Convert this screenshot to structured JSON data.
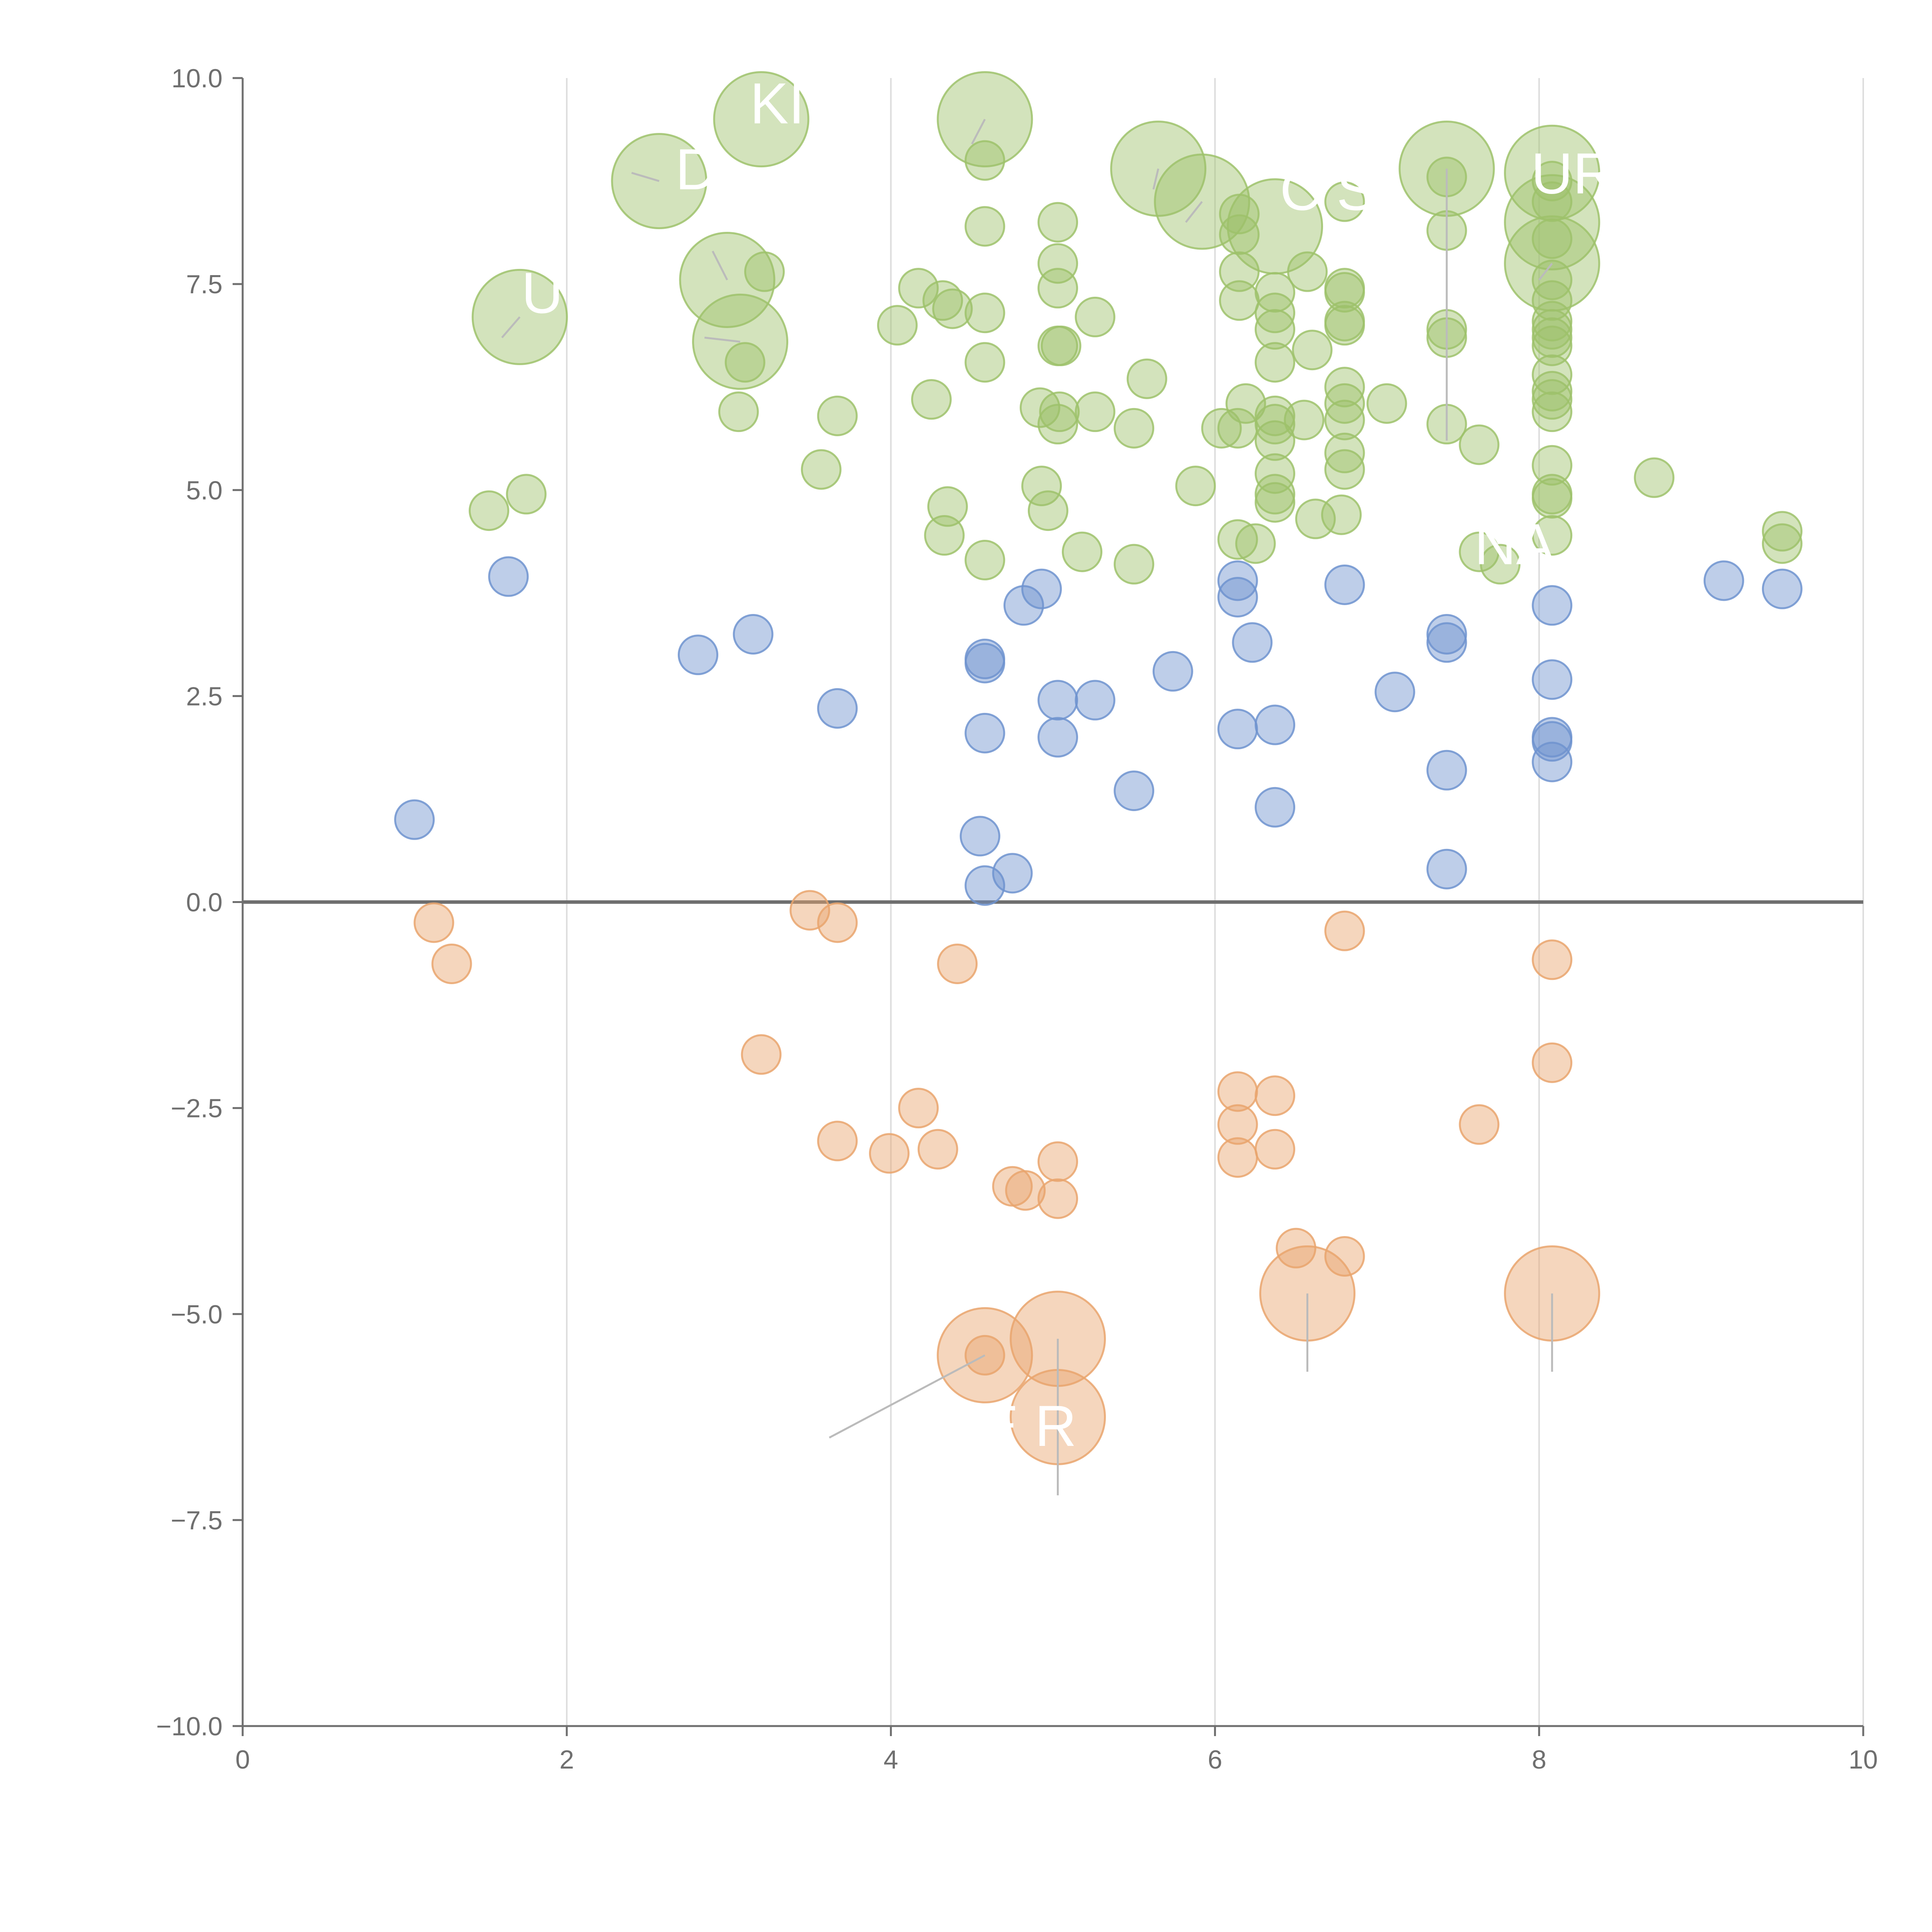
{
  "chart_data": {
    "type": "scatter",
    "title": "",
    "xlabel": "",
    "ylabel": "",
    "xlim": [
      0,
      10
    ],
    "ylim": [
      -10,
      10
    ],
    "x_ticks": [
      "0",
      "2",
      "4",
      "6",
      "8",
      "10"
    ],
    "y_ticks": [
      "10.0",
      "7.5",
      "5.0",
      "2.5",
      "0.0",
      "−2.5",
      "−5.0",
      "−7.5",
      "−10.0"
    ],
    "x_tick_values": [
      0,
      2,
      4,
      6,
      8,
      10
    ],
    "y_tick_values": [
      10,
      7.5,
      5,
      2.5,
      0,
      -2.5,
      -5,
      -7.5,
      -10
    ],
    "vertical_grid": true,
    "zero_line": true,
    "legend": false,
    "colors": {
      "high": "#9dc26b",
      "mid": "#6f93cf",
      "negative": "#e9a46d",
      "axis": "#6f6f6f",
      "grid": "#dddddd",
      "zero_line": "#6f6f6f",
      "leader_line": "#bbbbbb"
    },
    "series": [
      {
        "group": "high",
        "points": [
          [
            3.2,
            9.5,
            3
          ],
          [
            4.58,
            9.5,
            3
          ],
          [
            2.57,
            8.75,
            3
          ],
          [
            5.65,
            8.9,
            3
          ],
          [
            5.92,
            8.5,
            3
          ],
          [
            6.37,
            8.2,
            3
          ],
          [
            7.43,
            8.9,
            3
          ],
          [
            8.08,
            8.85,
            3
          ],
          [
            8.08,
            8.25,
            3
          ],
          [
            8.08,
            7.75,
            3
          ],
          [
            2.99,
            7.55,
            3
          ],
          [
            3.07,
            6.8,
            3
          ],
          [
            1.71,
            7.1,
            3
          ],
          [
            4.58,
            9.0,
            1
          ],
          [
            4.58,
            8.2,
            1
          ],
          [
            5.03,
            8.25,
            1
          ],
          [
            5.03,
            7.75,
            1
          ],
          [
            5.03,
            7.45,
            1
          ],
          [
            4.17,
            7.45,
            1
          ],
          [
            4.32,
            7.3,
            1
          ],
          [
            4.38,
            7.2,
            1
          ],
          [
            4.58,
            7.15,
            1
          ],
          [
            4.04,
            7.0,
            1
          ],
          [
            5.26,
            7.1,
            1
          ],
          [
            5.03,
            6.75,
            1
          ],
          [
            5.05,
            6.75,
            1
          ],
          [
            4.58,
            6.55,
            1
          ],
          [
            3.22,
            7.65,
            1
          ],
          [
            3.1,
            6.55,
            1
          ],
          [
            4.25,
            6.1,
            1
          ],
          [
            4.92,
            6.0,
            1
          ],
          [
            5.04,
            5.95,
            1
          ],
          [
            5.03,
            5.8,
            1
          ],
          [
            5.26,
            5.95,
            1
          ],
          [
            5.5,
            5.75,
            1
          ],
          [
            5.58,
            6.35,
            1
          ],
          [
            3.67,
            5.9,
            1
          ],
          [
            3.06,
            5.95,
            1
          ],
          [
            3.57,
            5.25,
            1
          ],
          [
            1.52,
            4.75,
            1
          ],
          [
            1.75,
            4.95,
            1
          ],
          [
            4.35,
            4.8,
            1
          ],
          [
            4.93,
            5.05,
            1
          ],
          [
            4.97,
            4.75,
            1
          ],
          [
            4.33,
            4.45,
            1
          ],
          [
            4.58,
            4.15,
            1
          ],
          [
            5.18,
            4.25,
            1
          ],
          [
            5.5,
            4.1,
            1
          ],
          [
            5.88,
            5.05,
            1
          ],
          [
            6.04,
            5.75,
            1
          ],
          [
            6.14,
            5.75,
            1
          ],
          [
            6.19,
            6.05,
            1
          ],
          [
            6.15,
            7.3,
            1
          ],
          [
            6.15,
            7.65,
            1
          ],
          [
            6.15,
            8.1,
            1
          ],
          [
            6.15,
            8.35,
            1
          ],
          [
            6.14,
            4.4,
            1
          ],
          [
            6.25,
            4.35,
            1
          ],
          [
            6.37,
            4.85,
            1
          ],
          [
            6.37,
            4.95,
            1
          ],
          [
            6.37,
            5.2,
            1
          ],
          [
            6.37,
            5.6,
            1
          ],
          [
            6.37,
            5.8,
            1
          ],
          [
            6.37,
            5.9,
            1
          ],
          [
            6.37,
            6.55,
            1
          ],
          [
            6.37,
            6.95,
            1
          ],
          [
            6.37,
            7.15,
            1
          ],
          [
            6.37,
            7.4,
            1
          ],
          [
            6.55,
            5.85,
            1
          ],
          [
            6.6,
            6.7,
            1
          ],
          [
            6.57,
            7.65,
            1
          ],
          [
            6.62,
            4.65,
            1
          ],
          [
            6.78,
            4.7,
            1
          ],
          [
            6.8,
            5.25,
            1
          ],
          [
            6.8,
            5.45,
            1
          ],
          [
            6.8,
            5.85,
            1
          ],
          [
            6.8,
            6.05,
            1
          ],
          [
            6.8,
            6.25,
            1
          ],
          [
            6.8,
            7.0,
            1
          ],
          [
            6.8,
            7.05,
            1
          ],
          [
            6.8,
            7.4,
            1
          ],
          [
            6.8,
            7.45,
            1
          ],
          [
            6.8,
            8.5,
            1
          ],
          [
            7.06,
            6.05,
            1
          ],
          [
            7.43,
            5.8,
            1
          ],
          [
            7.43,
            6.85,
            1
          ],
          [
            7.43,
            6.95,
            1
          ],
          [
            7.43,
            8.15,
            1
          ],
          [
            7.43,
            8.8,
            1
          ],
          [
            7.63,
            5.55,
            1
          ],
          [
            7.63,
            4.25,
            1
          ],
          [
            7.76,
            4.1,
            1
          ],
          [
            8.08,
            4.45,
            1
          ],
          [
            8.08,
            4.9,
            1
          ],
          [
            8.08,
            4.95,
            1
          ],
          [
            8.08,
            5.3,
            1
          ],
          [
            8.08,
            5.95,
            1
          ],
          [
            8.08,
            6.1,
            1
          ],
          [
            8.08,
            6.2,
            1
          ],
          [
            8.08,
            6.4,
            1
          ],
          [
            8.08,
            6.75,
            1
          ],
          [
            8.08,
            6.85,
            1
          ],
          [
            8.08,
            6.95,
            1
          ],
          [
            8.08,
            7.05,
            1
          ],
          [
            8.08,
            7.3,
            1
          ],
          [
            8.08,
            7.55,
            1
          ],
          [
            8.08,
            8.05,
            1
          ],
          [
            8.08,
            8.5,
            1
          ],
          [
            8.08,
            8.75,
            1
          ],
          [
            8.71,
            5.15,
            1
          ],
          [
            9.5,
            4.5,
            1
          ],
          [
            9.5,
            4.35,
            1
          ]
        ]
      },
      {
        "group": "mid",
        "points": [
          [
            1.06,
            1.0,
            1
          ],
          [
            1.64,
            3.95,
            1
          ],
          [
            2.81,
            3.0,
            1
          ],
          [
            3.15,
            3.25,
            1
          ],
          [
            3.67,
            2.35,
            1
          ],
          [
            4.58,
            2.95,
            1
          ],
          [
            4.58,
            2.9,
            1
          ],
          [
            4.58,
            2.05,
            1
          ],
          [
            4.55,
            0.8,
            1
          ],
          [
            4.58,
            0.2,
            1
          ],
          [
            4.75,
            0.35,
            1
          ],
          [
            4.82,
            3.6,
            1
          ],
          [
            4.93,
            3.8,
            1
          ],
          [
            5.03,
            2.45,
            1
          ],
          [
            5.03,
            2.0,
            1
          ],
          [
            5.26,
            2.45,
            1
          ],
          [
            5.5,
            1.35,
            1
          ],
          [
            5.74,
            2.8,
            1
          ],
          [
            6.14,
            3.9,
            1
          ],
          [
            6.14,
            3.7,
            1
          ],
          [
            6.14,
            2.1,
            1
          ],
          [
            6.23,
            3.15,
            1
          ],
          [
            6.37,
            2.15,
            1
          ],
          [
            6.37,
            1.15,
            1
          ],
          [
            6.8,
            3.85,
            1
          ],
          [
            7.11,
            2.55,
            1
          ],
          [
            7.43,
            3.25,
            1
          ],
          [
            7.43,
            3.15,
            1
          ],
          [
            7.43,
            1.6,
            1
          ],
          [
            7.43,
            0.4,
            1
          ],
          [
            8.08,
            3.6,
            1
          ],
          [
            8.08,
            2.7,
            1
          ],
          [
            8.08,
            2.0,
            1
          ],
          [
            8.08,
            1.95,
            1
          ],
          [
            8.08,
            1.7,
            1
          ],
          [
            9.14,
            3.9,
            1
          ],
          [
            9.5,
            3.8,
            1
          ]
        ]
      },
      {
        "group": "negative",
        "points": [
          [
            1.18,
            -0.25,
            1
          ],
          [
            1.29,
            -0.75,
            1
          ],
          [
            3.5,
            -0.1,
            1
          ],
          [
            3.67,
            -0.25,
            1
          ],
          [
            3.2,
            -1.85,
            1
          ],
          [
            4.41,
            -0.75,
            1
          ],
          [
            3.67,
            -2.9,
            1
          ],
          [
            3.99,
            -3.05,
            1
          ],
          [
            4.17,
            -2.5,
            1
          ],
          [
            4.29,
            -3.0,
            1
          ],
          [
            4.75,
            -3.45,
            1
          ],
          [
            4.83,
            -3.5,
            1
          ],
          [
            5.03,
            -3.15,
            1
          ],
          [
            5.03,
            -3.6,
            1
          ],
          [
            4.58,
            -5.5,
            1
          ],
          [
            4.58,
            -5.5,
            3
          ],
          [
            5.03,
            -5.3,
            3
          ],
          [
            5.03,
            -6.25,
            3
          ],
          [
            6.14,
            -2.3,
            1
          ],
          [
            6.14,
            -2.7,
            1
          ],
          [
            6.14,
            -3.1,
            1
          ],
          [
            6.37,
            -2.35,
            1
          ],
          [
            6.37,
            -3.0,
            1
          ],
          [
            6.5,
            -4.2,
            1
          ],
          [
            6.8,
            -4.3,
            1
          ],
          [
            6.8,
            -0.35,
            1
          ],
          [
            6.57,
            -4.75,
            3
          ],
          [
            7.63,
            -2.7,
            1
          ],
          [
            8.08,
            -0.7,
            1
          ],
          [
            8.08,
            -1.95,
            1
          ],
          [
            8.08,
            -4.75,
            3
          ]
        ]
      }
    ],
    "leader_lines": [
      [
        4.58,
        9.5,
        4.5,
        9.2
      ],
      [
        2.57,
        8.75,
        2.4,
        8.85
      ],
      [
        5.65,
        8.9,
        5.62,
        8.65
      ],
      [
        5.92,
        8.5,
        5.82,
        8.25
      ],
      [
        7.43,
        8.9,
        7.43,
        5.6
      ],
      [
        8.08,
        7.75,
        8.0,
        7.55
      ],
      [
        2.99,
        7.55,
        2.9,
        7.9
      ],
      [
        3.07,
        6.8,
        2.85,
        6.85
      ],
      [
        1.71,
        7.1,
        1.6,
        6.85
      ],
      [
        4.58,
        -5.5,
        3.62,
        -6.5
      ],
      [
        5.03,
        -5.3,
        5.03,
        -7.2
      ],
      [
        6.57,
        -4.75,
        6.57,
        -5.7
      ],
      [
        8.08,
        -4.75,
        8.08,
        -5.7
      ]
    ],
    "annotations": [
      {
        "text": "KI",
        "x": 3.13,
        "y": 9.45
      },
      {
        "text": "D",
        "x": 2.67,
        "y": 8.65
      },
      {
        "text": "U",
        "x": 1.72,
        "y": 7.15
      },
      {
        "text": "C",
        "x": 6.4,
        "y": 8.4
      },
      {
        "text": "S",
        "x": 6.75,
        "y": 8.4
      },
      {
        "text": "UR",
        "x": 7.95,
        "y": 8.6
      },
      {
        "text": "NA",
        "x": 7.6,
        "y": 4.1
      },
      {
        "text": "E R",
        "x": 4.55,
        "y": -6.6
      }
    ]
  }
}
